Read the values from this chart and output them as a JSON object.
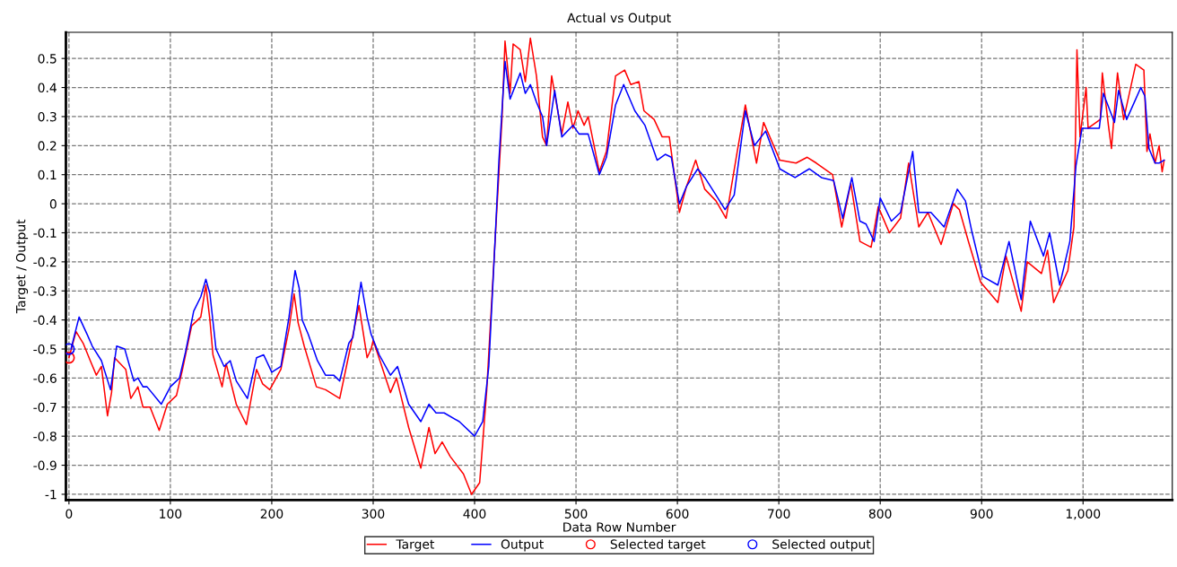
{
  "chart_data": {
    "type": "line",
    "title": "Actual vs Output",
    "xlabel": "Data Row Number",
    "ylabel": "Target / Output",
    "xlim": [
      -3,
      1088
    ],
    "ylim": [
      -1.02,
      0.59
    ],
    "xticks": [
      0,
      100,
      200,
      300,
      400,
      500,
      600,
      700,
      800,
      900,
      {
        "value": 1000,
        "label": "1,000"
      }
    ],
    "yticks": [
      0.5,
      0.4,
      0.3,
      0.2,
      0.1,
      0,
      -0.1,
      -0.2,
      -0.3,
      -0.4,
      -0.5,
      -0.6,
      -0.7,
      -0.8,
      -0.9,
      -1
    ],
    "grid": true,
    "legend": "bottom",
    "line_style": "solid",
    "series": [
      {
        "name": "Target",
        "color": "#ff0000",
        "x": [
          0,
          7,
          14,
          21,
          27,
          32,
          38,
          42,
          45,
          56,
          61,
          68,
          73,
          80,
          89,
          97,
          106,
          112,
          121,
          130,
          135,
          139,
          142,
          151,
          155,
          165,
          175,
          185,
          191,
          198,
          209,
          217,
          222,
          226,
          232,
          244,
          253,
          267,
          276,
          286,
          294,
          298,
          300,
          317,
          323,
          335,
          347,
          355,
          361,
          368,
          376,
          389,
          397,
          405,
          412,
          420,
          427,
          430,
          435,
          438,
          445,
          450,
          455,
          461,
          467,
          471,
          476,
          486,
          492,
          497,
          502,
          508,
          512,
          523,
          530,
          539,
          548,
          554,
          562,
          567,
          577,
          585,
          592,
          602,
          609,
          618,
          627,
          638,
          648,
          659,
          667,
          678,
          685,
          701,
          717,
          728,
          737,
          753,
          762,
          771,
          780,
          791,
          798,
          809,
          820,
          828,
          838,
          847,
          860,
          872,
          878,
          887,
          899,
          916,
          924,
          939,
          945,
          959,
          965,
          971,
          985,
          991,
          994,
          997,
          1003,
          1005,
          1017,
          1019,
          1025,
          1028,
          1034,
          1040,
          1052,
          1060,
          1063,
          1066,
          1071,
          1075,
          1078,
          1080
        ],
        "values": [
          -0.53,
          -0.44,
          -0.48,
          -0.54,
          -0.59,
          -0.56,
          -0.73,
          -0.65,
          -0.53,
          -0.57,
          -0.67,
          -0.63,
          -0.7,
          -0.7,
          -0.78,
          -0.69,
          -0.66,
          -0.57,
          -0.42,
          -0.39,
          -0.28,
          -0.4,
          -0.52,
          -0.63,
          -0.55,
          -0.69,
          -0.76,
          -0.57,
          -0.62,
          -0.64,
          -0.57,
          -0.43,
          -0.31,
          -0.41,
          -0.49,
          -0.63,
          -0.64,
          -0.67,
          -0.52,
          -0.35,
          -0.53,
          -0.5,
          -0.47,
          -0.65,
          -0.6,
          -0.77,
          -0.91,
          -0.77,
          -0.86,
          -0.82,
          -0.87,
          -0.93,
          -1.0,
          -0.96,
          -0.64,
          -0.14,
          0.29,
          0.56,
          0.38,
          0.55,
          0.53,
          0.42,
          0.57,
          0.44,
          0.23,
          0.2,
          0.44,
          0.24,
          0.35,
          0.26,
          0.32,
          0.27,
          0.3,
          0.11,
          0.18,
          0.44,
          0.46,
          0.41,
          0.42,
          0.32,
          0.29,
          0.23,
          0.23,
          -0.03,
          0.06,
          0.15,
          0.05,
          0.01,
          -0.05,
          0.18,
          0.34,
          0.14,
          0.28,
          0.15,
          0.14,
          0.16,
          0.14,
          0.1,
          -0.08,
          0.07,
          -0.13,
          -0.15,
          -0.01,
          -0.1,
          -0.05,
          0.14,
          -0.08,
          -0.03,
          -0.14,
          0.0,
          -0.02,
          -0.13,
          -0.27,
          -0.34,
          -0.18,
          -0.37,
          -0.2,
          -0.24,
          -0.16,
          -0.34,
          -0.23,
          -0.08,
          0.53,
          0.23,
          0.4,
          0.26,
          0.29,
          0.45,
          0.27,
          0.19,
          0.45,
          0.29,
          0.48,
          0.46,
          0.18,
          0.24,
          0.14,
          0.2,
          0.11,
          0.15
        ]
      },
      {
        "name": "Output",
        "color": "#0000ff",
        "x": [
          2,
          10,
          18,
          23,
          32,
          41,
          47,
          55,
          64,
          68,
          73,
          77,
          91,
          100,
          109,
          115,
          123,
          130,
          135,
          139,
          145,
          153,
          159,
          165,
          176,
          185,
          192,
          200,
          209,
          217,
          223,
          227,
          230,
          236,
          245,
          253,
          261,
          267,
          276,
          280,
          288,
          294,
          298,
          306,
          317,
          324,
          335,
          347,
          355,
          362,
          370,
          385,
          400,
          408,
          414,
          420,
          424,
          430,
          435,
          445,
          450,
          455,
          461,
          467,
          471,
          479,
          486,
          497,
          503,
          512,
          523,
          530,
          539,
          547,
          558,
          568,
          580,
          588,
          594,
          602,
          609,
          620,
          627,
          638,
          647,
          656,
          667,
          676,
          687,
          701,
          716,
          730,
          742,
          754,
          763,
          772,
          780,
          786,
          794,
          800,
          811,
          820,
          832,
          838,
          850,
          863,
          876,
          884,
          890,
          901,
          916,
          927,
          939,
          948,
          961,
          967,
          977,
          987,
          993,
          999,
          1016,
          1020,
          1031,
          1035,
          1043,
          1057,
          1061,
          1065,
          1071,
          1075,
          1080
        ],
        "values": [
          -0.5,
          -0.39,
          -0.45,
          -0.49,
          -0.54,
          -0.64,
          -0.49,
          -0.5,
          -0.61,
          -0.6,
          -0.63,
          -0.63,
          -0.69,
          -0.63,
          -0.6,
          -0.51,
          -0.37,
          -0.32,
          -0.26,
          -0.31,
          -0.5,
          -0.56,
          -0.54,
          -0.61,
          -0.67,
          -0.53,
          -0.52,
          -0.58,
          -0.56,
          -0.39,
          -0.23,
          -0.29,
          -0.4,
          -0.45,
          -0.54,
          -0.59,
          -0.59,
          -0.61,
          -0.48,
          -0.46,
          -0.27,
          -0.39,
          -0.45,
          -0.52,
          -0.59,
          -0.56,
          -0.69,
          -0.75,
          -0.69,
          -0.72,
          -0.72,
          -0.75,
          -0.8,
          -0.75,
          -0.56,
          -0.14,
          0.15,
          0.49,
          0.36,
          0.45,
          0.38,
          0.41,
          0.35,
          0.3,
          0.2,
          0.39,
          0.23,
          0.27,
          0.24,
          0.24,
          0.1,
          0.16,
          0.34,
          0.41,
          0.32,
          0.27,
          0.15,
          0.17,
          0.16,
          0.0,
          0.06,
          0.12,
          0.09,
          0.03,
          -0.02,
          0.03,
          0.32,
          0.2,
          0.25,
          0.12,
          0.09,
          0.12,
          0.09,
          0.08,
          -0.05,
          0.09,
          -0.06,
          -0.07,
          -0.13,
          0.02,
          -0.06,
          -0.03,
          0.18,
          -0.03,
          -0.03,
          -0.08,
          0.05,
          0.01,
          -0.09,
          -0.25,
          -0.28,
          -0.13,
          -0.33,
          -0.06,
          -0.18,
          -0.1,
          -0.28,
          -0.13,
          0.13,
          0.26,
          0.26,
          0.38,
          0.28,
          0.39,
          0.29,
          0.4,
          0.37,
          0.19,
          0.14,
          0.14,
          0.15
        ]
      },
      {
        "name": "Selected target",
        "color": "#ff0000",
        "type": "scatter",
        "marker": "circle",
        "x": [
          0
        ],
        "values": [
          -0.53
        ]
      },
      {
        "name": "Selected output",
        "color": "#0000ff",
        "type": "scatter",
        "marker": "circle",
        "x": [
          0
        ],
        "values": [
          -0.5
        ]
      }
    ]
  }
}
